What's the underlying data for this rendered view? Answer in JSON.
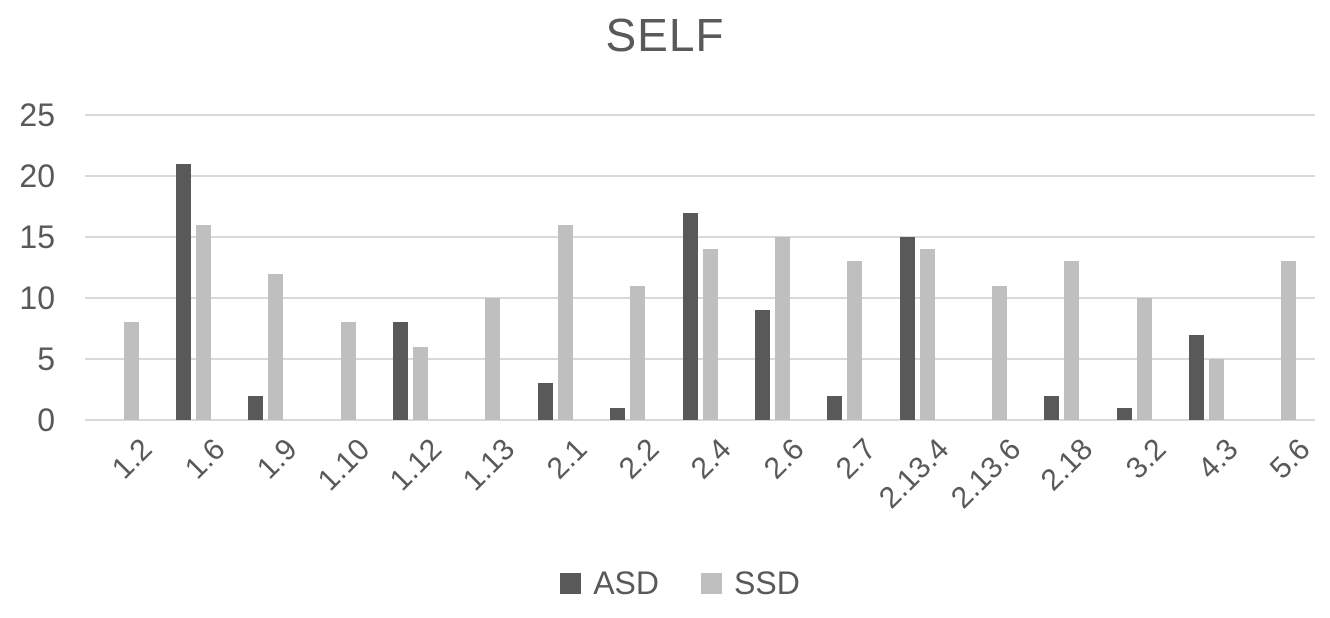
{
  "chart_data": {
    "type": "bar",
    "title": "SELF",
    "categories": [
      "1.2",
      "1.6",
      "1.9",
      "1.10",
      "1.12",
      "1.13",
      "2.1",
      "2.2",
      "2.4",
      "2.6",
      "2.7",
      "2.13.4",
      "2.13.6",
      "2.18",
      "3.2",
      "4.3",
      "5.6"
    ],
    "series": [
      {
        "name": "ASD",
        "color": "#595959",
        "values": [
          0,
          21,
          2,
          0,
          8,
          0,
          3,
          1,
          17,
          9,
          2,
          15,
          0,
          2,
          1,
          7,
          0
        ]
      },
      {
        "name": "SSD",
        "color": "#bfbfbf",
        "values": [
          8,
          16,
          12,
          8,
          6,
          10,
          16,
          11,
          14,
          15,
          13,
          14,
          11,
          13,
          10,
          5,
          13
        ]
      }
    ],
    "xlabel": "",
    "ylabel": "",
    "ylim": [
      0,
      25
    ],
    "yticks": [
      0,
      5,
      10,
      15,
      20,
      25
    ],
    "grid": true,
    "legend_position": "bottom"
  },
  "colors": {
    "text": "#595959",
    "gridline": "#d9d9d9",
    "background": "#ffffff"
  }
}
